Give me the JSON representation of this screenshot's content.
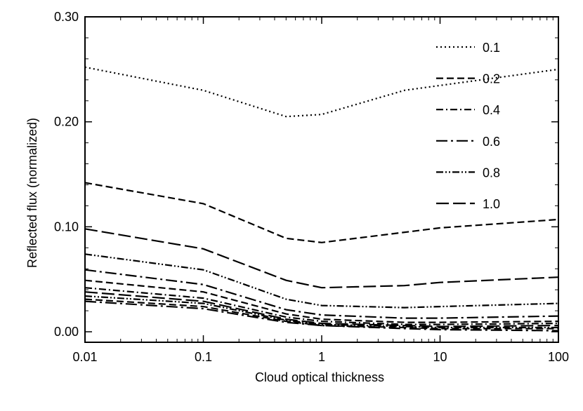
{
  "chart_data": {
    "type": "line",
    "title": "",
    "xlabel": "Cloud optical thickness",
    "ylabel": "Reflected flux (normalized)",
    "xscale": "log",
    "xlim": [
      0.01,
      100
    ],
    "ylim": [
      -0.01,
      0.3
    ],
    "x_ticks": [
      0.01,
      0.1,
      1,
      10,
      100
    ],
    "x_tick_labels": [
      "0.01",
      "0.1",
      "1",
      "10",
      "100"
    ],
    "y_ticks": [
      0.0,
      0.1,
      0.2,
      0.3
    ],
    "y_tick_labels": [
      "0.00",
      "0.10",
      "0.20",
      "0.30"
    ],
    "grid": false,
    "legend_position": "top-right",
    "legend_entries": [
      {
        "label": "0.1",
        "dash": "dotted"
      },
      {
        "label": "0.2",
        "dash": "dashed"
      },
      {
        "label": "0.4",
        "dash": "dash-dot"
      },
      {
        "label": "0.6",
        "dash": "long-dash-dot"
      },
      {
        "label": "0.8",
        "dash": "dash-dot-dot"
      },
      {
        "label": "1.0",
        "dash": "long-dash"
      }
    ],
    "series": [
      {
        "dash": "dotted",
        "points": [
          [
            0.01,
            0.252
          ],
          [
            0.1,
            0.23
          ],
          [
            0.5,
            0.205
          ],
          [
            1,
            0.207
          ],
          [
            5,
            0.23
          ],
          [
            100,
            0.25
          ]
        ]
      },
      {
        "dash": "dashed",
        "points": [
          [
            0.01,
            0.142
          ],
          [
            0.1,
            0.122
          ],
          [
            0.5,
            0.089
          ],
          [
            1,
            0.085
          ],
          [
            10,
            0.099
          ],
          [
            100,
            0.107
          ]
        ]
      },
      {
        "dash": "long-dash",
        "points": [
          [
            0.01,
            0.098
          ],
          [
            0.1,
            0.079
          ],
          [
            0.5,
            0.049
          ],
          [
            1,
            0.042
          ],
          [
            5,
            0.044
          ],
          [
            10,
            0.047
          ],
          [
            100,
            0.052
          ]
        ]
      },
      {
        "dash": "dash-dot-dot",
        "points": [
          [
            0.01,
            0.074
          ],
          [
            0.1,
            0.059
          ],
          [
            0.5,
            0.031
          ],
          [
            1,
            0.025
          ],
          [
            5,
            0.023
          ],
          [
            10,
            0.024
          ],
          [
            100,
            0.027
          ]
        ]
      },
      {
        "dash": "long-dash-dot",
        "points": [
          [
            0.01,
            0.059
          ],
          [
            0.1,
            0.045
          ],
          [
            0.5,
            0.021
          ],
          [
            1,
            0.016
          ],
          [
            5,
            0.013
          ],
          [
            10,
            0.013
          ],
          [
            100,
            0.015
          ]
        ]
      },
      {
        "dash": "dashed",
        "points": [
          [
            0.01,
            0.049
          ],
          [
            0.1,
            0.038
          ],
          [
            0.5,
            0.017
          ],
          [
            1,
            0.012
          ],
          [
            5,
            0.009
          ],
          [
            10,
            0.009
          ],
          [
            100,
            0.01
          ]
        ]
      },
      {
        "dash": "dash-dot",
        "points": [
          [
            0.01,
            0.042
          ],
          [
            0.1,
            0.032
          ],
          [
            0.5,
            0.014
          ],
          [
            1,
            0.01
          ],
          [
            5,
            0.007
          ],
          [
            10,
            0.007
          ],
          [
            100,
            0.008
          ]
        ]
      },
      {
        "dash": "long-dash",
        "points": [
          [
            0.01,
            0.038
          ],
          [
            0.1,
            0.029
          ],
          [
            0.5,
            0.012
          ],
          [
            1,
            0.008
          ],
          [
            5,
            0.006
          ],
          [
            10,
            0.005
          ],
          [
            100,
            0.006
          ]
        ]
      },
      {
        "dash": "dash-dot-dot",
        "points": [
          [
            0.01,
            0.034
          ],
          [
            0.1,
            0.027
          ],
          [
            0.5,
            0.011
          ],
          [
            1,
            0.007
          ],
          [
            5,
            0.005
          ],
          [
            10,
            0.004
          ],
          [
            100,
            0.004
          ]
        ]
      },
      {
        "dash": "dashed",
        "points": [
          [
            0.01,
            0.031
          ],
          [
            0.1,
            0.024
          ],
          [
            0.5,
            0.01
          ],
          [
            1,
            0.006
          ],
          [
            5,
            0.004
          ],
          [
            10,
            0.003
          ],
          [
            100,
            0.003
          ]
        ]
      },
      {
        "dash": "long-dash-dot",
        "points": [
          [
            0.01,
            0.029
          ],
          [
            0.1,
            0.022
          ],
          [
            0.5,
            0.009
          ],
          [
            1,
            0.006
          ],
          [
            5,
            0.003
          ],
          [
            10,
            0.002
          ],
          [
            100,
            0.001
          ]
        ]
      }
    ]
  }
}
